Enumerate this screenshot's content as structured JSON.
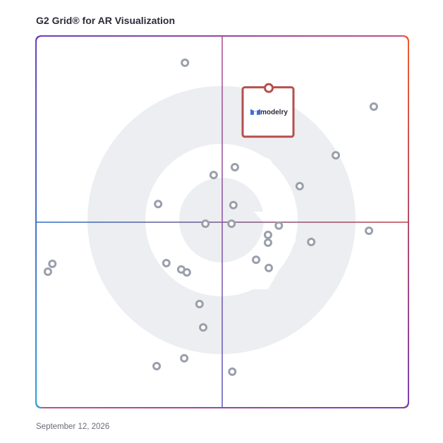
{
  "chart_data": {
    "type": "scatter",
    "title": "G2 Grid® for AR Visualization",
    "footer": "September 12, 2026",
    "xlim": [
      0,
      100
    ],
    "ylim": [
      0,
      100
    ],
    "color": "#9aa0ab",
    "x": [
      40.0,
      90.7,
      80.5,
      53.4,
      47.7,
      70.8,
      32.8,
      53.0,
      45.5,
      52.5,
      65.2,
      89.4,
      62.3,
      62.3,
      73.9,
      59.1,
      4.4,
      3.2,
      35.0,
      39.0,
      40.5,
      62.5,
      43.9,
      44.9,
      32.4,
      39.8,
      52.7
    ],
    "y": [
      92.8,
      81.0,
      67.9,
      64.7,
      62.6,
      59.6,
      54.8,
      54.5,
      49.5,
      49.5,
      49.0,
      47.6,
      46.5,
      44.4,
      44.6,
      39.8,
      38.7,
      36.6,
      38.9,
      37.2,
      36.4,
      37.6,
      27.9,
      21.6,
      11.2,
      13.3,
      9.7
    ],
    "highlight": {
      "label": "modelry",
      "x": 62.5,
      "y": 86.0,
      "color": "#b5504d"
    }
  }
}
